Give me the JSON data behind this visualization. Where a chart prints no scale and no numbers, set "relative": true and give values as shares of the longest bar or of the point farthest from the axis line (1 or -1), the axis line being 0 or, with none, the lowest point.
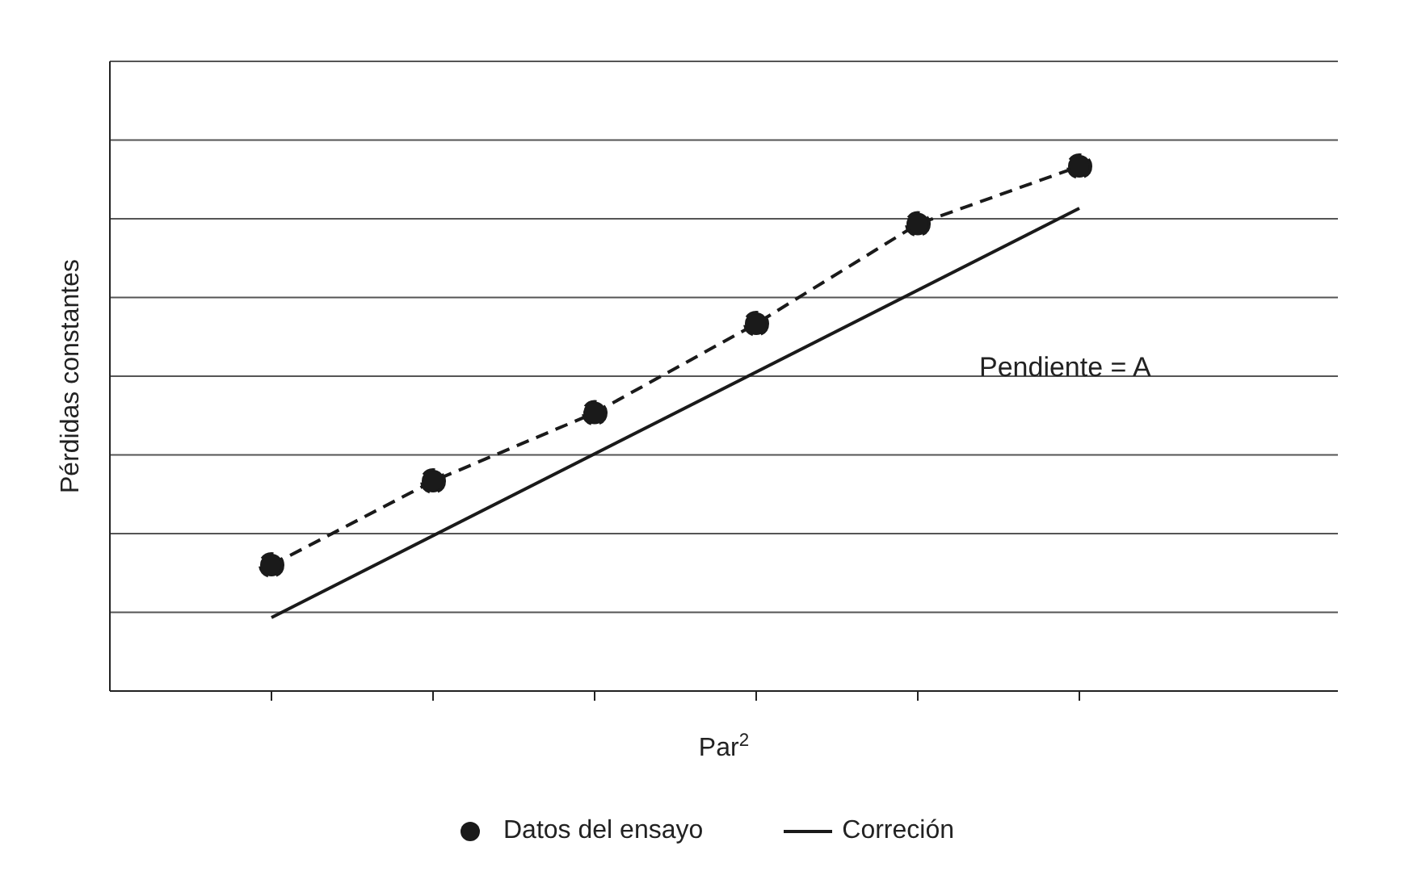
{
  "chart_data": {
    "type": "line",
    "relative": true,
    "xlabel": "Par$^{2}$",
    "ylabel": "Pérdidas constantes",
    "categories": [
      null,
      null,
      null,
      null,
      null,
      null
    ],
    "series": [
      {
        "name": "Datos del ensayo",
        "color": "#1a1a1a",
        "values": [
          0.24,
          0.4,
          0.53,
          0.7,
          0.89,
          1.0
        ],
        "marker": "circle",
        "line_style": "dashed"
      },
      {
        "name": "Correción",
        "color": "#1a1a1a",
        "values": [
          0.14,
          null,
          null,
          null,
          null,
          0.92
        ],
        "marker": "none",
        "line_style": "solid"
      }
    ],
    "annotations": [
      "Pendiente = A"
    ],
    "grid": "y",
    "legend": "bottom"
  }
}
